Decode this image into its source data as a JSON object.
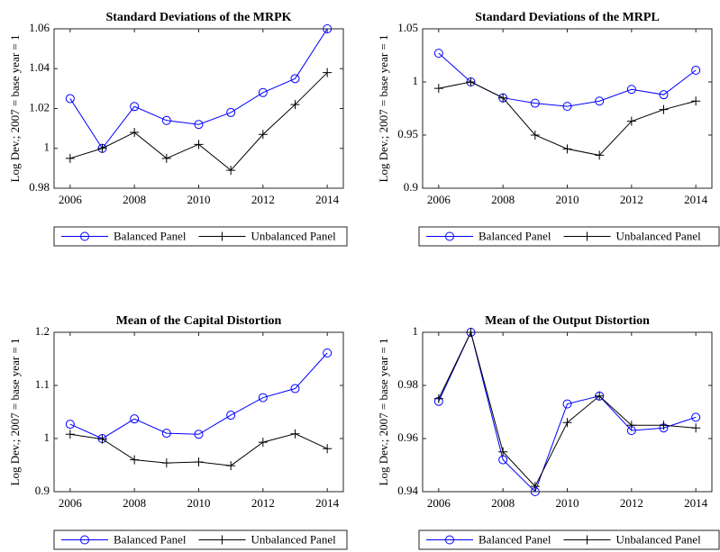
{
  "chart_data": [
    {
      "type": "line",
      "title": "Standard Deviations of the MRPK",
      "y_label": "Log Dev.; 2007 = base year = 1",
      "x": [
        2006,
        2007,
        2008,
        2009,
        2010,
        2011,
        2012,
        2013,
        2014
      ],
      "xlim": [
        2005.5,
        2014.5
      ],
      "xticks": [
        2006,
        2008,
        2010,
        2012,
        2014
      ],
      "ylim": [
        0.98,
        1.06
      ],
      "yticks": [
        0.98,
        1,
        1.02,
        1.04,
        1.06
      ],
      "series": [
        {
          "name": "Balanced Panel",
          "color": "#0000ff",
          "marker": "circle",
          "values": [
            1.025,
            1.0,
            1.021,
            1.014,
            1.012,
            1.018,
            1.028,
            1.035,
            1.06
          ]
        },
        {
          "name": "Unbalanced Panel",
          "color": "#000000",
          "marker": "plus",
          "values": [
            0.995,
            1.0,
            1.008,
            0.995,
            1.002,
            0.989,
            1.007,
            1.022,
            1.038
          ]
        }
      ]
    },
    {
      "type": "line",
      "title": "Standard Deviations of the MRPL",
      "y_label": "Log Dev.; 2007 = base year = 1",
      "x": [
        2006,
        2007,
        2008,
        2009,
        2010,
        2011,
        2012,
        2013,
        2014
      ],
      "xlim": [
        2005.5,
        2014.5
      ],
      "xticks": [
        2006,
        2008,
        2010,
        2012,
        2014
      ],
      "ylim": [
        0.9,
        1.05
      ],
      "yticks": [
        0.9,
        0.95,
        1,
        1.05
      ],
      "series": [
        {
          "name": "Balanced Panel",
          "color": "#0000ff",
          "marker": "circle",
          "values": [
            1.027,
            1.0,
            0.985,
            0.98,
            0.977,
            0.982,
            0.993,
            0.988,
            1.011
          ]
        },
        {
          "name": "Unbalanced Panel",
          "color": "#000000",
          "marker": "plus",
          "values": [
            0.994,
            1.0,
            0.985,
            0.95,
            0.937,
            0.931,
            0.963,
            0.974,
            0.982
          ]
        }
      ]
    },
    {
      "type": "line",
      "title": "Mean of the Capital Distortion",
      "y_label": "Log Dev.; 2007 = base year = 1",
      "x": [
        2006,
        2007,
        2008,
        2009,
        2010,
        2011,
        2012,
        2013,
        2014
      ],
      "xlim": [
        2005.5,
        2014.5
      ],
      "xticks": [
        2006,
        2008,
        2010,
        2012,
        2014
      ],
      "ylim": [
        0.9,
        1.2
      ],
      "yticks": [
        0.9,
        1,
        1.1,
        1.2
      ],
      "series": [
        {
          "name": "Balanced Panel",
          "color": "#0000ff",
          "marker": "circle",
          "values": [
            1.027,
            1.0,
            1.037,
            1.01,
            1.008,
            1.044,
            1.077,
            1.094,
            1.161
          ]
        },
        {
          "name": "Unbalanced Panel",
          "color": "#000000",
          "marker": "plus",
          "values": [
            1.008,
            0.999,
            0.96,
            0.954,
            0.956,
            0.949,
            0.993,
            1.009,
            0.981
          ]
        }
      ]
    },
    {
      "type": "line",
      "title": "Mean of the Output Distortion",
      "y_label": "Log Dev.; 2007 = base year = 1",
      "x": [
        2006,
        2007,
        2008,
        2009,
        2010,
        2011,
        2012,
        2013,
        2014
      ],
      "xlim": [
        2005.5,
        2014.5
      ],
      "xticks": [
        2006,
        2008,
        2010,
        2012,
        2014
      ],
      "ylim": [
        0.94,
        1.0
      ],
      "yticks": [
        0.94,
        0.96,
        0.98,
        1
      ],
      "series": [
        {
          "name": "Balanced Panel",
          "color": "#0000ff",
          "marker": "circle",
          "values": [
            0.974,
            1.0,
            0.952,
            0.94,
            0.973,
            0.976,
            0.963,
            0.964,
            0.968
          ]
        },
        {
          "name": "Unbalanced Panel",
          "color": "#000000",
          "marker": "plus",
          "values": [
            0.975,
            1.0,
            0.955,
            0.942,
            0.966,
            0.976,
            0.965,
            0.965,
            0.964
          ]
        }
      ]
    }
  ]
}
